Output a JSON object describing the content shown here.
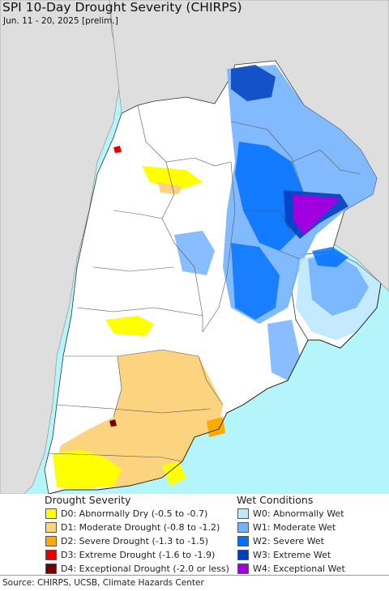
{
  "title": "SPI 10-Day Drought Severity (CHIRPS)",
  "subtitle": "Jun. 11 - 20, 2025 [prelim.]",
  "source": "Source: CHIRPS, UCSB, Climate Hazards Center",
  "colors": {
    "ocean": "#b3f5f8",
    "outside_land": "#dedede",
    "land": "#ffffff",
    "border": "#555555"
  },
  "legend": {
    "drought": {
      "heading": "Drought Severity",
      "items": [
        {
          "label": "D0: Abnormally Dry (-0.5 to -0.7)",
          "color": "#ffff00"
        },
        {
          "label": "D1: Moderate Drought (-0.8 to -1.2)",
          "color": "#fcd37f"
        },
        {
          "label": "D2: Severe Drought (-1.3 to -1.5)",
          "color": "#ffaa00"
        },
        {
          "label": "D3: Extreme Drought (-1.6 to -1.9)",
          "color": "#e60000"
        },
        {
          "label": "D4: Exceptional Drought (-2.0 or less)",
          "color": "#730000"
        }
      ]
    },
    "wet": {
      "heading": "Wet Conditions",
      "items": [
        {
          "label": "W0: Abnormally Wet",
          "color": "#bee8ff"
        },
        {
          "label": "W1: Moderate Wet",
          "color": "#73b2ff"
        },
        {
          "label": "W2: Severe Wet",
          "color": "#0070ff"
        },
        {
          "label": "W3: Extreme Wet",
          "color": "#0040c0"
        },
        {
          "label": "W4: Exceptional Wet",
          "color": "#a000e0"
        }
      ]
    }
  }
}
